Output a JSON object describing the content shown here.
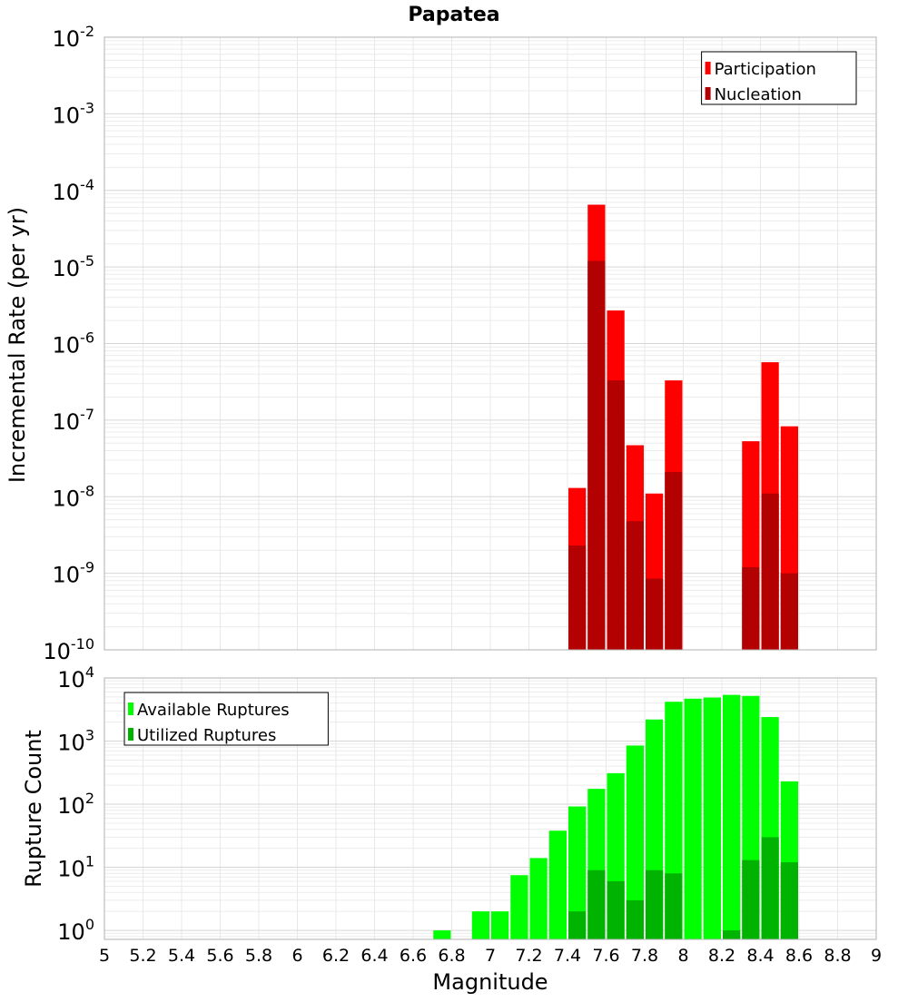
{
  "chart_data": [
    {
      "type": "bar",
      "title": "Papatea",
      "xlabel": "",
      "ylabel": "Incremental Rate (per yr)",
      "yscale": "log",
      "xlim": [
        5,
        9
      ],
      "ylim": [
        1e-10,
        0.01
      ],
      "grid": true,
      "legend_position": "top-right",
      "y_tick_exponents": [
        "-2",
        "-3",
        "-4",
        "-5",
        "-6",
        "-7",
        "-8",
        "-9",
        "-10"
      ],
      "y_tick_base": "10",
      "bin_width": 0.1,
      "series": [
        {
          "name": "Participation",
          "color": "#ff0000",
          "x": [
            7.45,
            7.55,
            7.65,
            7.75,
            7.85,
            7.95,
            8.35,
            8.45,
            8.55
          ],
          "values": [
            1.3e-08,
            6.5e-05,
            2.7e-06,
            4.7e-08,
            1.1e-08,
            3.3e-07,
            5.3e-08,
            5.7e-07,
            8.3e-08
          ]
        },
        {
          "name": "Nucleation",
          "color": "#b30000",
          "x": [
            7.45,
            7.55,
            7.65,
            7.75,
            7.85,
            7.95,
            8.35,
            8.45,
            8.55
          ],
          "values": [
            2.3e-09,
            1.2e-05,
            3.3e-07,
            4.8e-09,
            8.5e-10,
            2.1e-08,
            1.2e-09,
            1.1e-08,
            1e-09
          ]
        }
      ]
    },
    {
      "type": "bar",
      "title": "",
      "xlabel": "Magnitude",
      "ylabel": "Rupture Count",
      "yscale": "log",
      "xlim": [
        5,
        9
      ],
      "ylim": [
        0.72,
        10000
      ],
      "grid": true,
      "legend_position": "top-left",
      "y_tick_exponents": [
        "4",
        "3",
        "2",
        "1",
        "0"
      ],
      "y_tick_base": "10",
      "x_ticks": [
        "5",
        "5.2",
        "5.4",
        "5.6",
        "5.8",
        "6",
        "6.2",
        "6.4",
        "6.6",
        "6.8",
        "7",
        "7.2",
        "7.4",
        "7.6",
        "7.8",
        "8",
        "8.2",
        "8.4",
        "8.6",
        "8.8",
        "9"
      ],
      "bin_width": 0.1,
      "series": [
        {
          "name": "Available Ruptures",
          "color": "#00ff00",
          "x": [
            6.75,
            6.95,
            7.05,
            7.15,
            7.25,
            7.35,
            7.45,
            7.55,
            7.65,
            7.75,
            7.85,
            7.95,
            8.05,
            8.15,
            8.25,
            8.35,
            8.45,
            8.55
          ],
          "values": [
            1,
            2,
            2,
            7.5,
            14,
            38,
            92,
            175,
            310,
            850,
            2200,
            4200,
            4700,
            4900,
            5400,
            5200,
            2400,
            230
          ]
        },
        {
          "name": "Utilized Ruptures",
          "color": "#00b300",
          "x": [
            7.45,
            7.55,
            7.65,
            7.75,
            7.85,
            7.95,
            8.25,
            8.35,
            8.45,
            8.55
          ],
          "values": [
            2,
            9,
            6,
            3,
            9,
            8,
            1,
            13,
            30,
            12
          ]
        }
      ]
    }
  ]
}
